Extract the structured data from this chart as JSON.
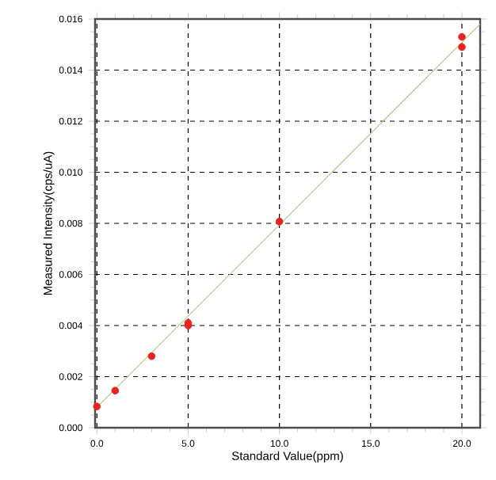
{
  "chart_data": {
    "type": "scatter",
    "xlabel": "Standard Value(ppm)",
    "ylabel": "Measured Intensity(cps/uA)",
    "xlim": [
      -0.1,
      21
    ],
    "ylim": [
      0,
      0.016
    ],
    "xticks": [
      {
        "value": 0,
        "label": "0.0"
      },
      {
        "value": 5,
        "label": "5.0"
      },
      {
        "value": 10,
        "label": "10.0"
      },
      {
        "value": 15,
        "label": "15.0"
      },
      {
        "value": 20,
        "label": "20.0"
      }
    ],
    "yticks": [
      {
        "value": 0,
        "label": "0.000"
      },
      {
        "value": 0.002,
        "label": "0.002"
      },
      {
        "value": 0.004,
        "label": "0.004"
      },
      {
        "value": 0.006,
        "label": "0.006"
      },
      {
        "value": 0.008,
        "label": "0.008"
      },
      {
        "value": 0.01,
        "label": "0.010"
      },
      {
        "value": 0.012,
        "label": "0.012"
      },
      {
        "value": 0.014,
        "label": "0.014"
      },
      {
        "value": 0.016,
        "label": "0.016"
      }
    ],
    "grid": true,
    "series": [
      {
        "type": "line",
        "marker": "none",
        "color": "#a9cf8c",
        "x": [
          0,
          21
        ],
        "values": [
          0.0008,
          0.0158
        ]
      },
      {
        "marker": "circle",
        "color": "#e8231f",
        "x": [
          0,
          1,
          3,
          5,
          5,
          10,
          20,
          20
        ],
        "values": [
          0.00083,
          0.00145,
          0.0028,
          0.0041,
          0.004,
          0.00807,
          0.0153,
          0.0149
        ]
      }
    ]
  }
}
